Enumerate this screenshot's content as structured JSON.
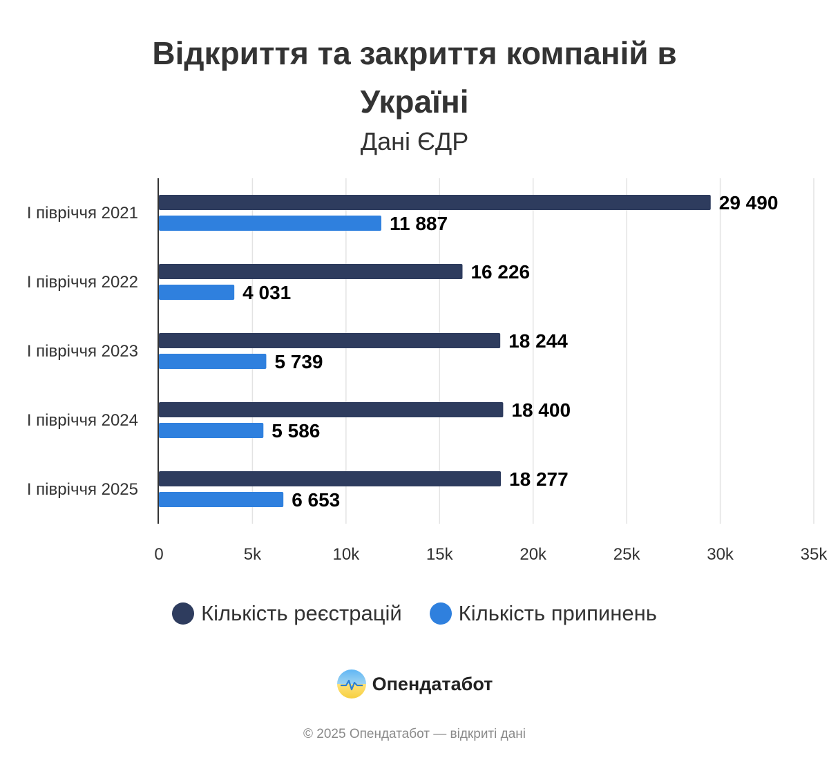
{
  "chart_data": {
    "type": "bar",
    "orientation": "horizontal",
    "title": "Відкриття та закриття компаній в Україні",
    "subtitle": "Дані ЄДР",
    "categories": [
      "І півріччя 2021",
      "І півріччя 2022",
      "І півріччя 2023",
      "І півріччя 2024",
      "І півріччя 2025"
    ],
    "series": [
      {
        "name": "Кількість реєстрацій",
        "color": "#2e3c5e",
        "values": [
          29490,
          16226,
          18244,
          18400,
          18277
        ],
        "labels": [
          "29 490",
          "16 226",
          "18 244",
          "18 400",
          "18 277"
        ]
      },
      {
        "name": "Кількість припинень",
        "color": "#2f80de",
        "values": [
          11887,
          4031,
          5739,
          5586,
          6653
        ],
        "labels": [
          "11 887",
          "4 031",
          "5 739",
          "5 586",
          "6 653"
        ]
      }
    ],
    "xlim": [
      0,
      35000
    ],
    "ticks": [
      0,
      5000,
      10000,
      15000,
      20000,
      25000,
      30000,
      35000
    ],
    "tick_labels": [
      "0",
      "5k",
      "10k",
      "15k",
      "20k",
      "25k",
      "30k",
      "35k"
    ],
    "grid": true,
    "legend": "bottom"
  },
  "brand": {
    "name": "Опендатабот",
    "logo_icon": "opendatabot-logo-icon"
  },
  "footer": "© 2025 Опендатабот — відкриті дані"
}
